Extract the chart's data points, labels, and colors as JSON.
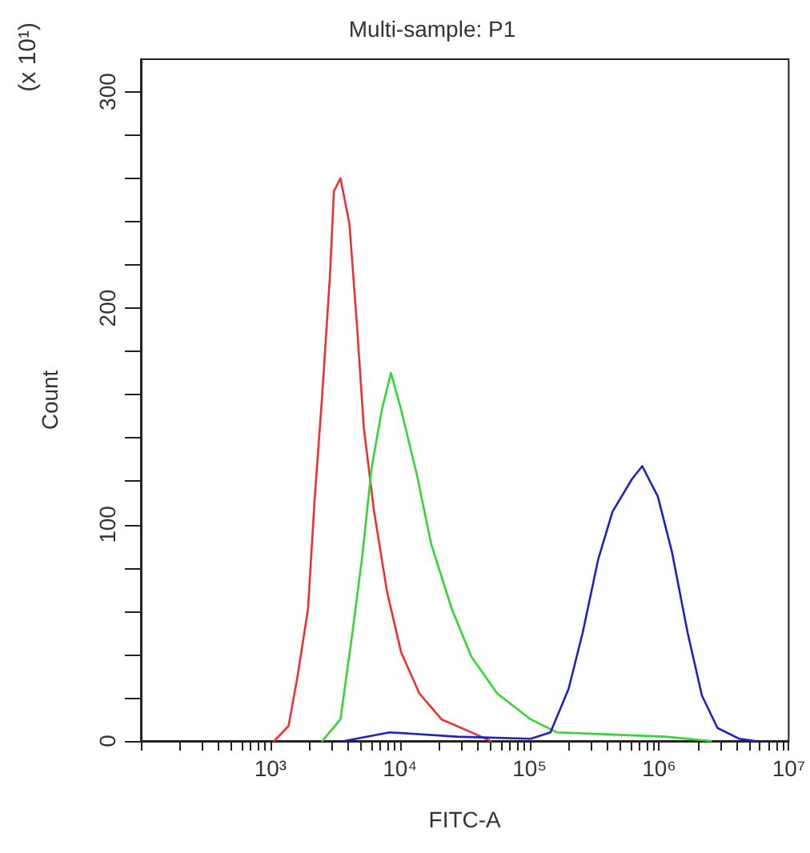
{
  "chart_data": {
    "type": "line",
    "title": "Multi-sample: P1",
    "xlabel": "FITC-A",
    "ylabel": "Count",
    "annotations": [
      "(x 10¹)"
    ],
    "log": "x",
    "grid": false,
    "marker": "none",
    "line_style": "solid",
    "xlim": [
      100,
      10000000
    ],
    "xticks": [
      {
        "value": 100,
        "label": null
      },
      {
        "value": 1000,
        "label": "10³"
      },
      {
        "value": 10000,
        "label": "10⁴"
      },
      {
        "value": 100000,
        "label": "10⁵"
      },
      {
        "value": 1000000,
        "label": "10⁶"
      },
      {
        "value": 10000000,
        "label": "10⁷"
      }
    ],
    "ylim": [
      0,
      315
    ],
    "yticks": [
      0,
      {
        "value": 20,
        "label": null
      },
      {
        "value": 40,
        "label": null
      },
      {
        "value": 60,
        "label": null
      },
      {
        "value": 80,
        "label": null
      },
      100,
      {
        "value": 120,
        "label": null
      },
      {
        "value": 140,
        "label": null
      },
      {
        "value": 160,
        "label": null
      },
      {
        "value": 180,
        "label": null
      },
      200,
      {
        "value": 220,
        "label": null
      },
      {
        "value": 240,
        "label": null
      },
      {
        "value": 260,
        "label": null
      },
      {
        "value": 280,
        "label": null
      },
      300
    ],
    "series": [
      {
        "color": "#f03030",
        "x": [
          1070,
          1380,
          1620,
          1950,
          2190,
          2510,
          2880,
          3090,
          3470,
          4070,
          4680,
          5250,
          6310,
          7940,
          10200,
          14100,
          20900,
          35500,
          50100
        ],
        "values": [
          0,
          7,
          30,
          61,
          111,
          160,
          215,
          254,
          260,
          239,
          190,
          145,
          106,
          69,
          41,
          22,
          10,
          4,
          0
        ]
      },
      {
        "color": "#30d830",
        "x": [
          2510,
          3470,
          4270,
          5130,
          6030,
          7240,
          8510,
          10200,
          13500,
          17400,
          25100,
          35500,
          56200,
          102000,
          162000,
          1120000,
          2510000
        ],
        "values": [
          0,
          10,
          49,
          86,
          126,
          153,
          170,
          153,
          123,
          91,
          61,
          39,
          22,
          10,
          4,
          2,
          0
        ]
      },
      {
        "color": "#2020c8",
        "x": [
          3720,
          8320,
          27500,
          102000,
          145000,
          200000,
          257000,
          339000,
          437000,
          617000,
          741000,
          977000,
          1260000,
          1660000,
          2140000,
          2820000,
          4170000,
          5500000
        ],
        "values": [
          0,
          4,
          2,
          1,
          4,
          24,
          50,
          84,
          106,
          121,
          127,
          113,
          87,
          50,
          21,
          6,
          1,
          0
        ]
      }
    ]
  }
}
